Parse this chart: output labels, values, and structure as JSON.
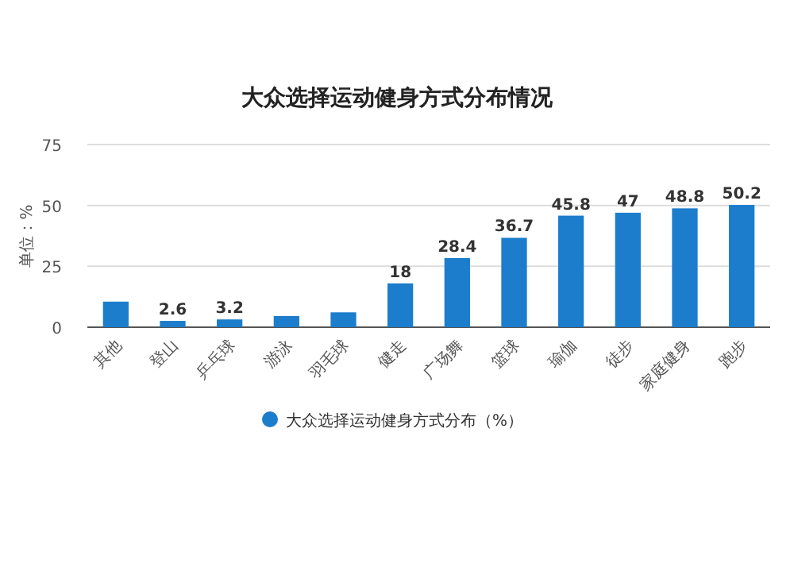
{
  "chart_data": {
    "type": "bar",
    "title": "大众选择运动健身方式分布情况",
    "ylabel": "单位：%",
    "categories": [
      "其他",
      "登山",
      "乒乓球",
      "游泳",
      "羽毛球",
      "健走",
      "广场舞",
      "篮球",
      "瑜伽",
      "徒步",
      "家庭健身",
      "跑步"
    ],
    "series": [
      {
        "name": "大众选择运动健身方式分布（%）",
        "color": "#1b7dcc",
        "values": [
          10.5,
          2.6,
          3.2,
          4.6,
          6.1,
          18,
          28.4,
          36.7,
          45.8,
          47,
          48.8,
          50.2
        ],
        "value_labels": [
          null,
          "2.6",
          "3.2",
          null,
          null,
          "18",
          "28.4",
          "36.7",
          "45.8",
          "47",
          "48.8",
          "50.2"
        ]
      }
    ],
    "ylim": [
      0,
      75
    ],
    "yticks": [
      0,
      25,
      50,
      75
    ],
    "grid": "y",
    "legend": "bottom"
  }
}
